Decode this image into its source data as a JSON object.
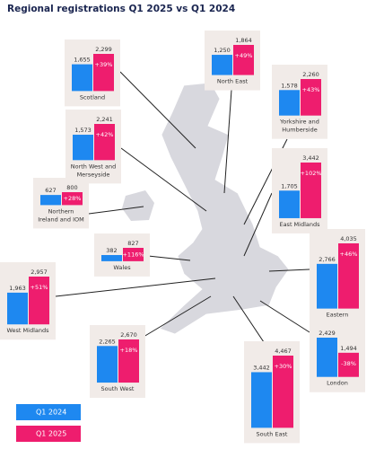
{
  "title": "Regional registrations Q1 2025 vs Q1 2024",
  "colors": [
    "#1e88f0",
    "#ee1d6e"
  ],
  "legend": [
    "Q1 2024",
    "Q1 2025"
  ],
  "regions": [
    {
      "name_lines": [
        "Scotland"
      ],
      "values": [
        1655,
        2299
      ],
      "value_labels": [
        "1,655",
        "2,299"
      ],
      "change": "+39%"
    },
    {
      "name_lines": [
        "North East"
      ],
      "values": [
        1250,
        1864
      ],
      "value_labels": [
        "1,250",
        "1,864"
      ],
      "change": "+49%"
    },
    {
      "name_lines": [
        "Yorkshire and",
        "Humberside"
      ],
      "values": [
        1578,
        2260
      ],
      "value_labels": [
        "1,578",
        "2,260"
      ],
      "change": "+43%"
    },
    {
      "name_lines": [
        "North West and",
        "Merseyside"
      ],
      "values": [
        1573,
        2241
      ],
      "value_labels": [
        "1,573",
        "2,241"
      ],
      "change": "+42%"
    },
    {
      "name_lines": [
        "East Midlands"
      ],
      "values": [
        1705,
        3442
      ],
      "value_labels": [
        "1,705",
        "3,442"
      ],
      "change": "+102%"
    },
    {
      "name_lines": [
        "Northern",
        "Ireland and IOM"
      ],
      "values": [
        627,
        800
      ],
      "value_labels": [
        "627",
        "800"
      ],
      "change": "+28%"
    },
    {
      "name_lines": [
        "Wales"
      ],
      "values": [
        382,
        827
      ],
      "value_labels": [
        "382",
        "827"
      ],
      "change": "+116%"
    },
    {
      "name_lines": [
        "Eastern"
      ],
      "values": [
        2766,
        4035
      ],
      "value_labels": [
        "2,766",
        "4,035"
      ],
      "change": "+46%"
    },
    {
      "name_lines": [
        "West Midlands"
      ],
      "values": [
        1963,
        2957
      ],
      "value_labels": [
        "1,963",
        "2,957"
      ],
      "change": "+51%"
    },
    {
      "name_lines": [
        "London"
      ],
      "values": [
        2429,
        1494
      ],
      "value_labels": [
        "2,429",
        "1,494"
      ],
      "change": "-38%"
    },
    {
      "name_lines": [
        "South West"
      ],
      "values": [
        2265,
        2670
      ],
      "value_labels": [
        "2,265",
        "2,670"
      ],
      "change": "+18%"
    },
    {
      "name_lines": [
        "South East"
      ],
      "values": [
        3442,
        4467
      ],
      "value_labels": [
        "3,442",
        "4,467"
      ],
      "change": "+30%"
    }
  ]
}
